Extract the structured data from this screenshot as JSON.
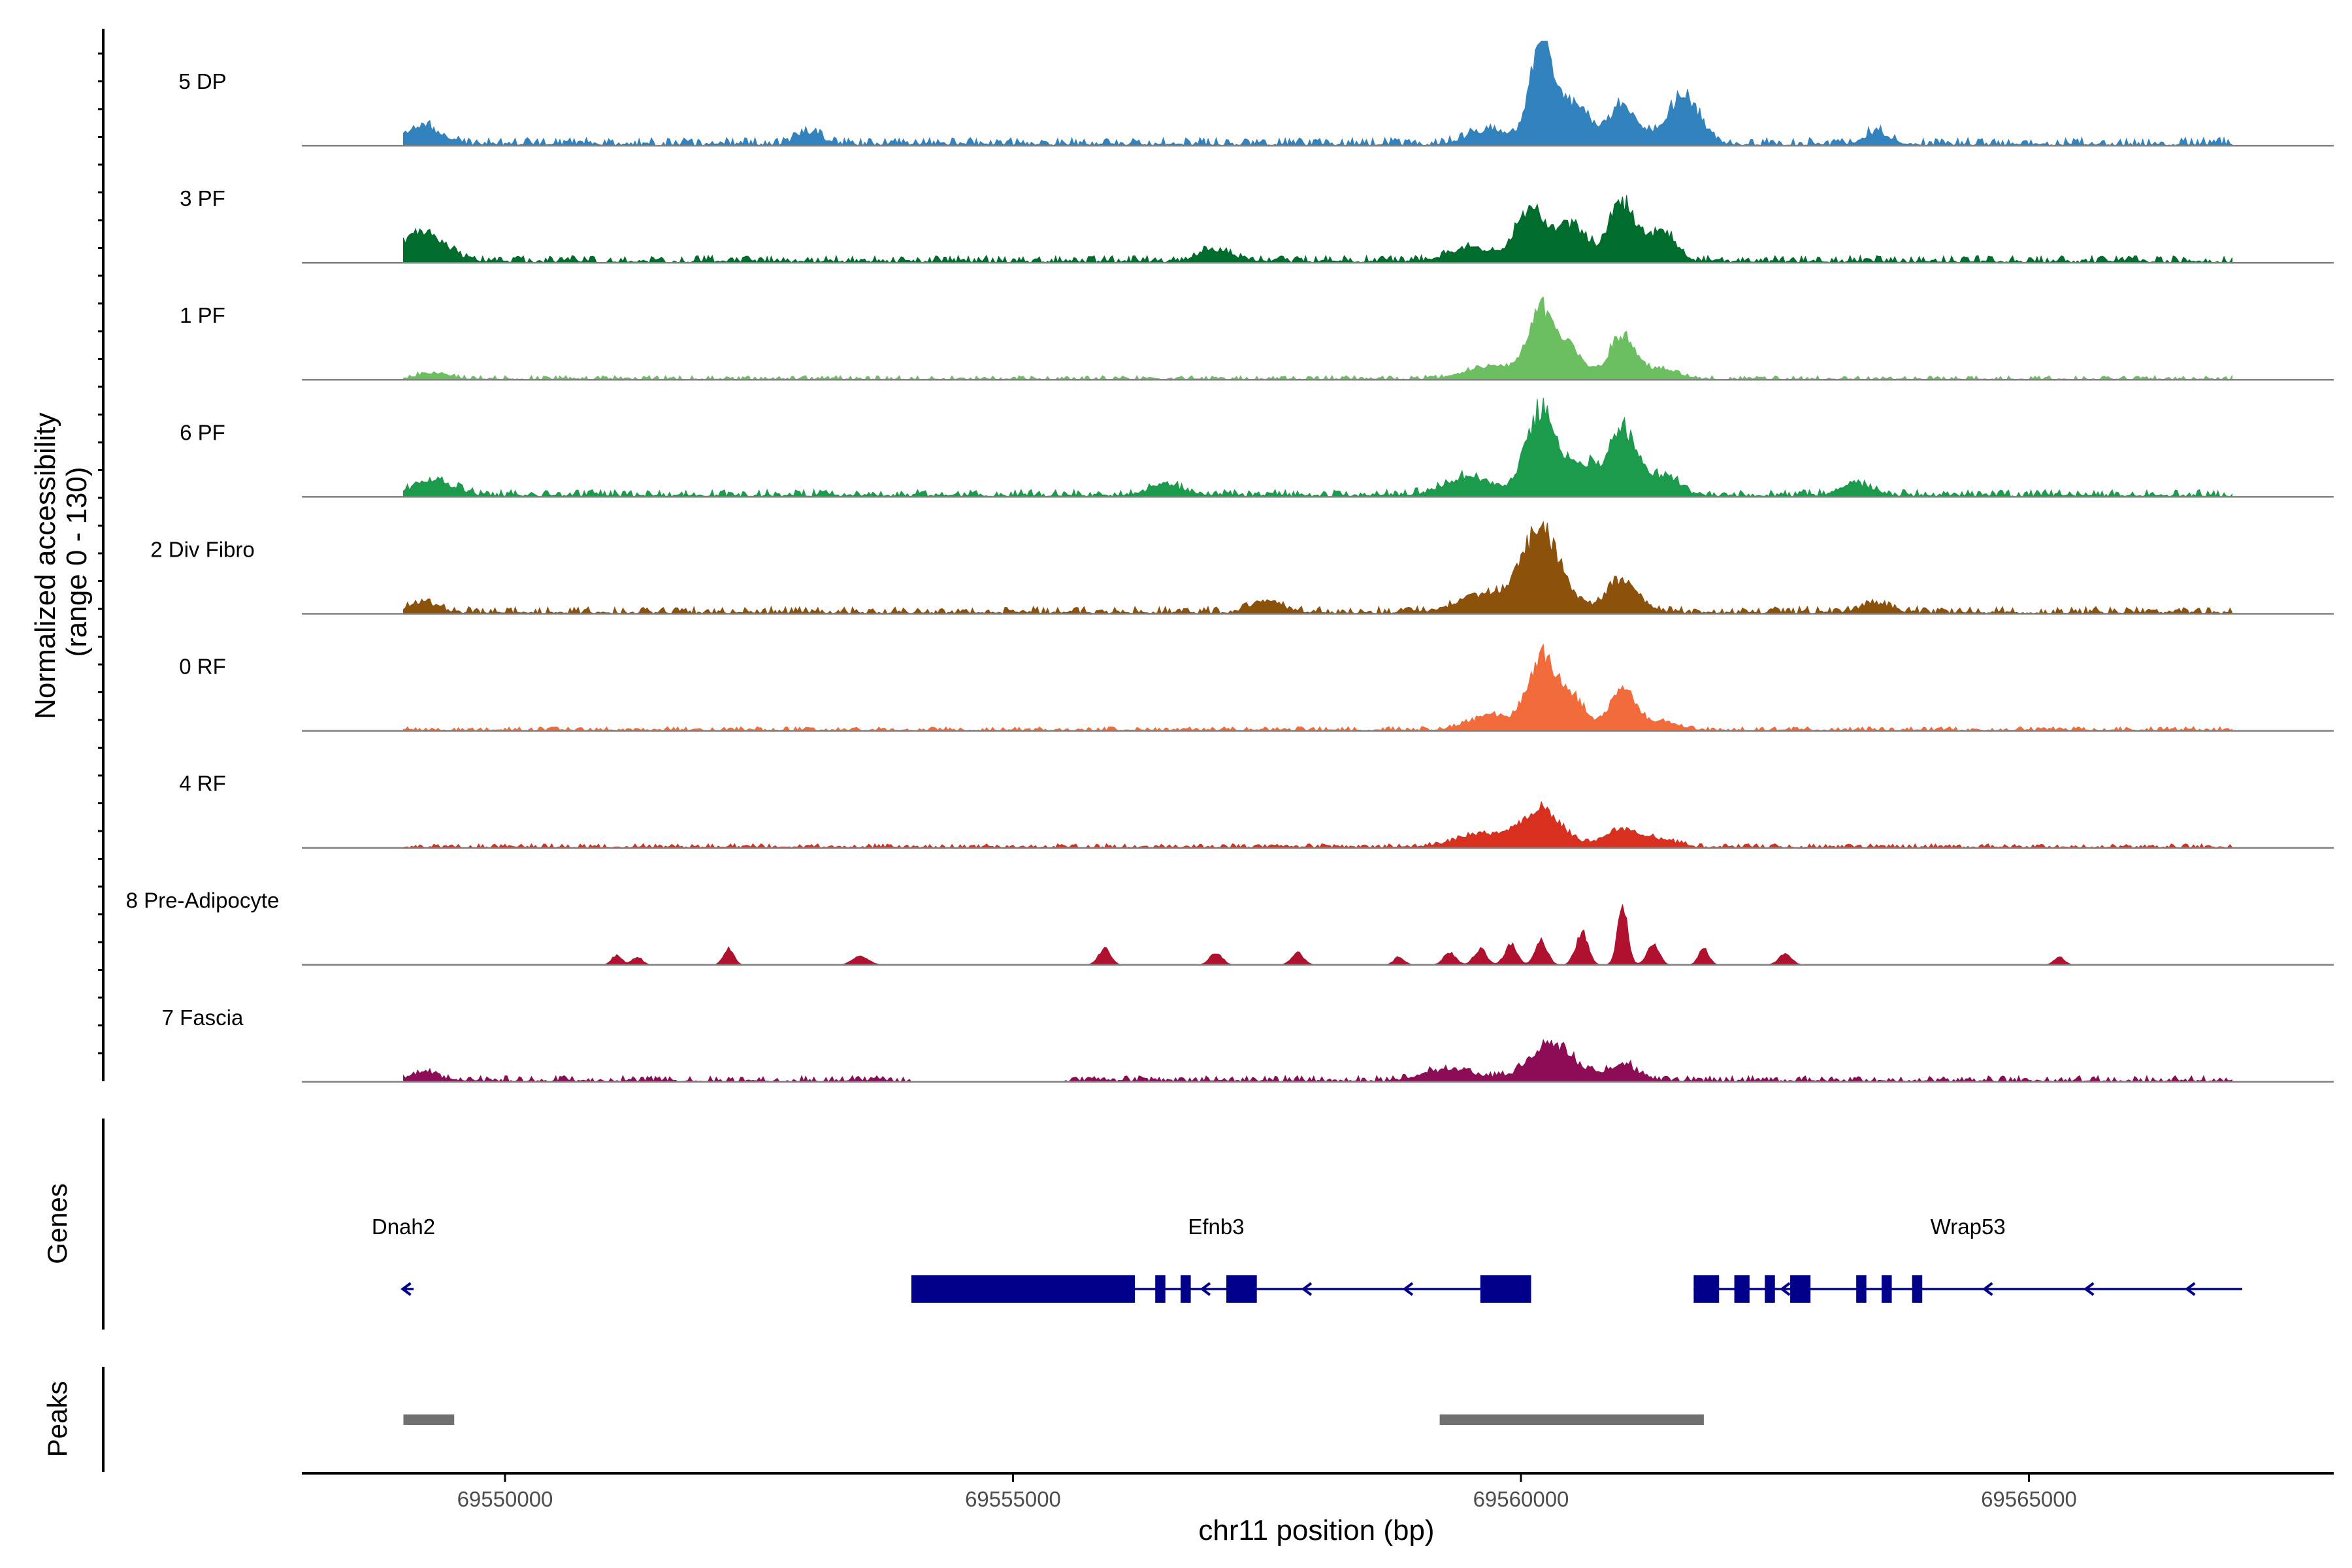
{
  "chart_data": {
    "type": "area",
    "title": "",
    "ylabel_lines": [
      "Normalized accessibility",
      "(range 0 - 130)"
    ],
    "xlabel": "chr11 position (bp)",
    "ylim": [
      0,
      130
    ],
    "xlim": [
      69548000,
      69568000
    ],
    "x_ticks": [
      69550000,
      69555000,
      69560000,
      69565000
    ],
    "x_tick_labels": [
      "69550000",
      "69555000",
      "69560000",
      "69565000"
    ],
    "series": [
      {
        "name": "5 DP",
        "color": "#3282BD",
        "baseline": 8,
        "baseline_range": [
          69549000,
          69567000
        ],
        "noise_gaps": [],
        "peaks": [
          [
            69549200,
            22,
            160
          ],
          [
            69553000,
            15,
            120
          ],
          [
            69559700,
            18,
            200
          ],
          [
            69560200,
            130,
            110
          ],
          [
            69560500,
            50,
            150
          ],
          [
            69561000,
            45,
            150
          ],
          [
            69561600,
            60,
            160
          ],
          [
            69563500,
            15,
            120
          ]
        ]
      },
      {
        "name": "3 PF",
        "color": "#006D2C",
        "baseline": 7,
        "baseline_range": [
          69549000,
          69567000
        ],
        "noise_gaps": [],
        "peaks": [
          [
            69549200,
            38,
            200
          ],
          [
            69557000,
            15,
            150
          ],
          [
            69559500,
            18,
            200
          ],
          [
            69560100,
            65,
            150
          ],
          [
            69560500,
            45,
            140
          ],
          [
            69561000,
            70,
            140
          ],
          [
            69561400,
            35,
            130
          ]
        ]
      },
      {
        "name": "1 PF",
        "color": "#6BBF60",
        "baseline": 4,
        "baseline_range": [
          69549000,
          69567000
        ],
        "noise_gaps": [],
        "peaks": [
          [
            69549300,
            8,
            150
          ],
          [
            69559700,
            15,
            250
          ],
          [
            69560200,
            85,
            130
          ],
          [
            69560500,
            35,
            130
          ],
          [
            69561000,
            55,
            130
          ],
          [
            69561400,
            12,
            150
          ]
        ]
      },
      {
        "name": "6 PF",
        "color": "#1B9B4B",
        "baseline": 7,
        "baseline_range": [
          69549000,
          69567000
        ],
        "noise_gaps": [],
        "peaks": [
          [
            69549300,
            18,
            200
          ],
          [
            69556500,
            15,
            150
          ],
          [
            69559500,
            22,
            250
          ],
          [
            69560200,
            105,
            140
          ],
          [
            69560600,
            40,
            150
          ],
          [
            69561000,
            80,
            130
          ],
          [
            69561400,
            25,
            150
          ],
          [
            69563300,
            15,
            150
          ]
        ]
      },
      {
        "name": "2 Div Fibro",
        "color": "#8C510A",
        "baseline": 7,
        "baseline_range": [
          69549000,
          69567000
        ],
        "noise_gaps": [],
        "peaks": [
          [
            69549200,
            12,
            150
          ],
          [
            69557500,
            15,
            150
          ],
          [
            69559600,
            20,
            250
          ],
          [
            69560200,
            100,
            200
          ],
          [
            69561000,
            40,
            160
          ],
          [
            69563500,
            10,
            150
          ]
        ]
      },
      {
        "name": "0 RF",
        "color": "#F26B3A",
        "baseline": 4,
        "baseline_range": [
          69549000,
          69567000
        ],
        "noise_gaps": [],
        "peaks": [
          [
            69559700,
            18,
            200
          ],
          [
            69560200,
            90,
            130
          ],
          [
            69560500,
            40,
            130
          ],
          [
            69561000,
            50,
            130
          ],
          [
            69561400,
            10,
            150
          ]
        ]
      },
      {
        "name": "4 RF",
        "color": "#D7301F",
        "baseline": 4,
        "baseline_range": [
          69549000,
          69567000
        ],
        "noise_gaps": [],
        "peaks": [
          [
            69559600,
            15,
            250
          ],
          [
            69560200,
            45,
            200
          ],
          [
            69561000,
            22,
            180
          ],
          [
            69561400,
            8,
            150
          ]
        ]
      },
      {
        "name": "8 Pre-Adipocyte",
        "color": "#B0112E",
        "baseline": 0,
        "baseline_range": [
          69549000,
          69567000
        ],
        "noise_gaps": [],
        "peaks": [
          [
            69551100,
            12,
            50
          ],
          [
            69551300,
            10,
            50
          ],
          [
            69552200,
            20,
            50
          ],
          [
            69553500,
            10,
            80
          ],
          [
            69555900,
            20,
            60
          ],
          [
            69557000,
            15,
            60
          ],
          [
            69557800,
            15,
            60
          ],
          [
            69558800,
            10,
            50
          ],
          [
            69559300,
            15,
            60
          ],
          [
            69559600,
            20,
            60
          ],
          [
            69559900,
            25,
            60
          ],
          [
            69560200,
            30,
            60
          ],
          [
            69560600,
            40,
            60
          ],
          [
            69561000,
            70,
            50
          ],
          [
            69561300,
            25,
            60
          ],
          [
            69561800,
            20,
            50
          ],
          [
            69562600,
            15,
            60
          ],
          [
            69565300,
            10,
            50
          ]
        ]
      },
      {
        "name": "7 Fascia",
        "color": "#8C0D55",
        "baseline": 6,
        "baseline_range": [
          69549000,
          69567000
        ],
        "noise_gaps": [
          [
            69554000,
            69555500
          ]
        ],
        "peaks": [
          [
            69549200,
            10,
            150
          ],
          [
            69559300,
            15,
            250
          ],
          [
            69560300,
            45,
            220
          ],
          [
            69561000,
            20,
            150
          ]
        ]
      }
    ],
    "genes": [
      {
        "name": "Dnah2",
        "strand": "-",
        "start": 69549000,
        "end": 69549100,
        "exons": [],
        "label_at": 69549000
      },
      {
        "name": "Efnb3",
        "strand": "-",
        "start": 69554000,
        "end": 69560100,
        "exons": [
          [
            69554000,
            69556200
          ],
          [
            69556400,
            69556500
          ],
          [
            69556650,
            69556750
          ],
          [
            69557100,
            69557400
          ],
          [
            69559600,
            69560100
          ]
        ],
        "label_at": 69557000
      },
      {
        "name": "Wrap53",
        "strand": "-",
        "start": 69561700,
        "end": 69567100,
        "exons": [
          [
            69561700,
            69561950
          ],
          [
            69562100,
            69562250
          ],
          [
            69562400,
            69562500
          ],
          [
            69562650,
            69562850
          ],
          [
            69563300,
            69563400
          ],
          [
            69563550,
            69563650
          ],
          [
            69563850,
            69563950
          ]
        ],
        "label_at": 69564400
      }
    ],
    "peaks": [
      [
        69549000,
        69549500
      ],
      [
        69559200,
        69561800
      ]
    ],
    "panels": [
      "Genes",
      "Peaks"
    ]
  }
}
